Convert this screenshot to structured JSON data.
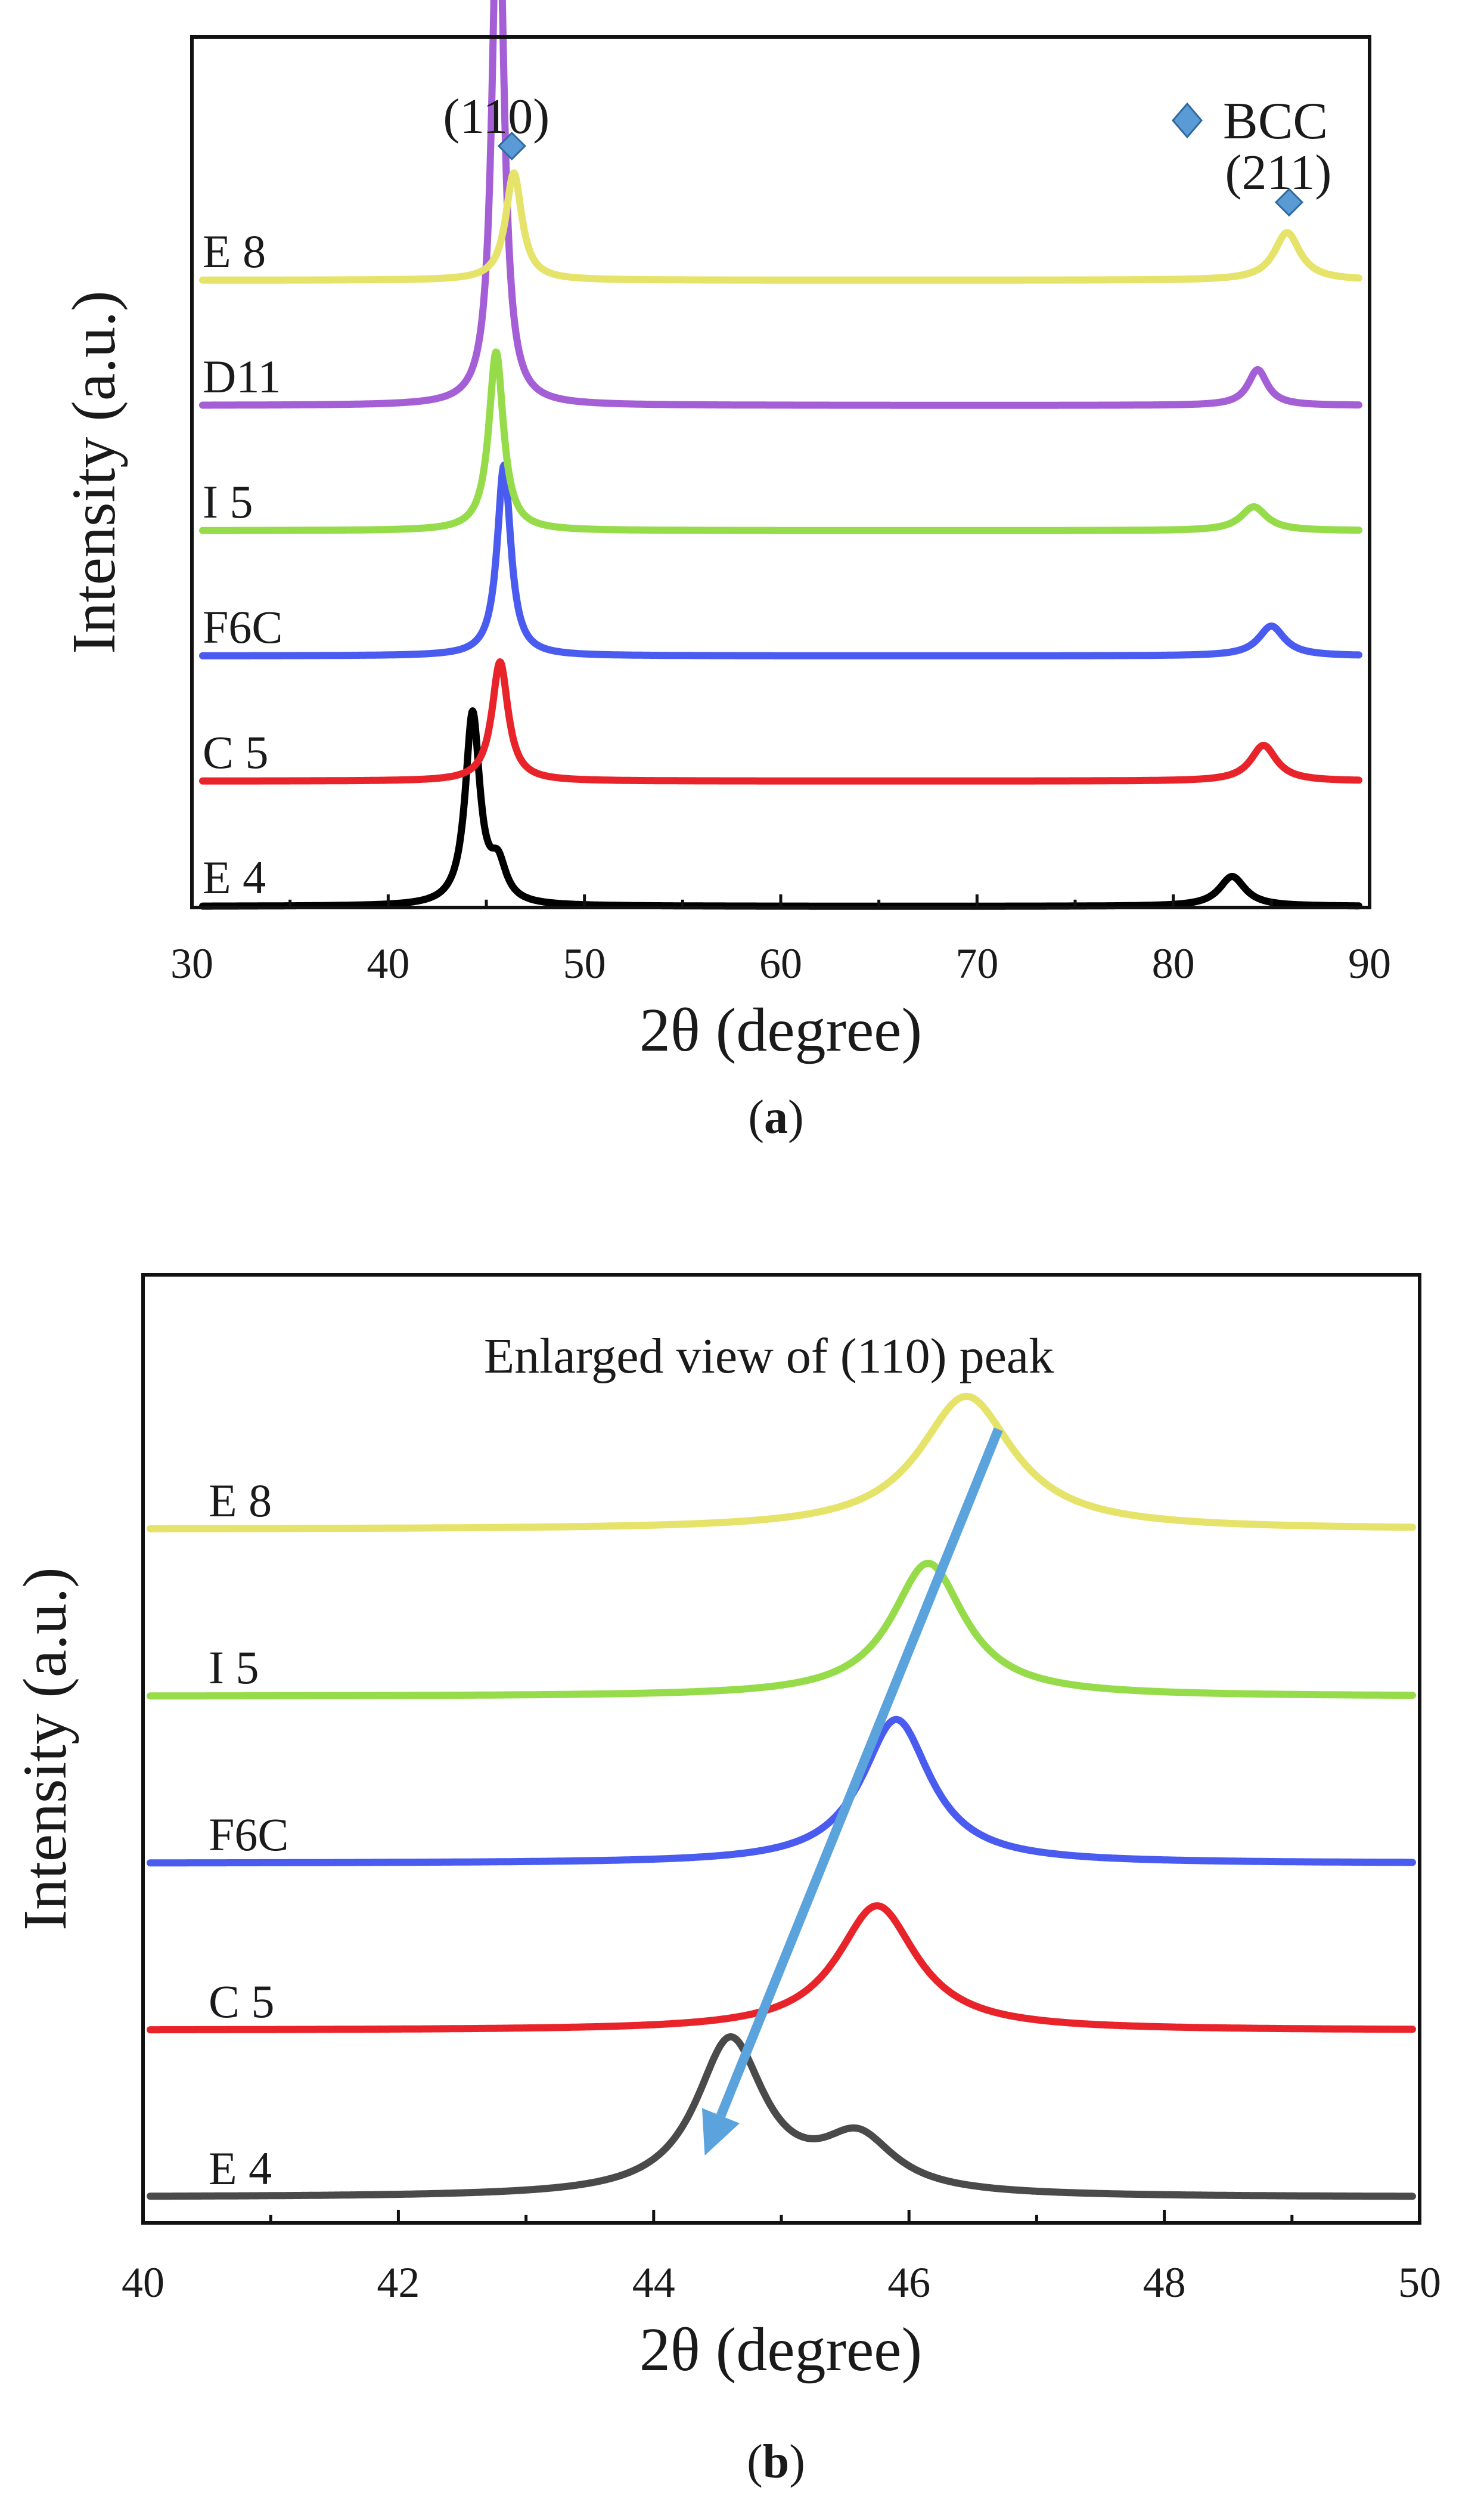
{
  "figure": {
    "panel_a_label": "a",
    "panel_b_label": "b"
  },
  "chart_data": [
    {
      "type": "line",
      "panel": "a",
      "xlabel": "2θ (degree)",
      "ylabel": "Intensity (a.u.)",
      "xlim": [
        30,
        90
      ],
      "xticks": [
        30,
        40,
        50,
        60,
        70,
        80,
        90
      ],
      "legend": {
        "marker": "diamond",
        "label": "BCC",
        "color": "#5b9bd5",
        "placement": "top-right"
      },
      "peak_labels": [
        {
          "text": "(110)",
          "x": 46.3
        },
        {
          "text": "(211)",
          "x": 85.9
        }
      ],
      "series": [
        {
          "name": "E 8",
          "color": "#e6e36a",
          "baseline": 5,
          "peaks": [
            {
              "x": 46.4,
              "height": 0.9,
              "width": 0.5
            },
            {
              "x": 85.8,
              "height": 0.4,
              "width": 0.8
            }
          ]
        },
        {
          "name": "D11",
          "color": "#a55fd6",
          "baseline": 4,
          "peaks": [
            {
              "x": 45.6,
              "height": 4.7,
              "width": 0.35
            },
            {
              "x": 84.3,
              "height": 0.3,
              "width": 0.6
            }
          ]
        },
        {
          "name": "I 5",
          "color": "#96dc4a",
          "baseline": 3,
          "peaks": [
            {
              "x": 45.5,
              "height": 1.5,
              "width": 0.45
            },
            {
              "x": 84.1,
              "height": 0.2,
              "width": 0.8
            }
          ]
        },
        {
          "name": "F6C",
          "color": "#4a5cf0",
          "baseline": 2,
          "peaks": [
            {
              "x": 45.9,
              "height": 1.6,
              "width": 0.42
            },
            {
              "x": 85.0,
              "height": 0.25,
              "width": 0.8
            }
          ]
        },
        {
          "name": "C 5",
          "color": "#e8242a",
          "baseline": 1,
          "peaks": [
            {
              "x": 45.7,
              "height": 1.0,
              "width": 0.5
            },
            {
              "x": 84.6,
              "height": 0.3,
              "width": 0.8
            }
          ]
        },
        {
          "name": "E 4",
          "color": "#000000",
          "baseline": 0,
          "peaks": [
            {
              "x": 44.3,
              "height": 1.6,
              "width": 0.45
            },
            {
              "x": 45.6,
              "height": 0.3,
              "width": 0.5
            },
            {
              "x": 83.0,
              "height": 0.25,
              "width": 0.8
            }
          ]
        }
      ]
    },
    {
      "type": "line",
      "panel": "b",
      "title": "Enlarged view of (110) peak",
      "xlabel": "2θ (degree)",
      "ylabel": "Intensity (a.u.)",
      "xlim": [
        40,
        50
      ],
      "xticks": [
        40,
        42,
        44,
        46,
        48,
        50
      ],
      "arrow": {
        "from": [
          46.7,
          4.6
        ],
        "to": [
          44.4,
          0.25
        ],
        "color": "#5ba3dd"
      },
      "series": [
        {
          "name": "E 8",
          "color": "#e6e36a",
          "baseline": 4,
          "peaks": [
            {
              "x": 46.45,
              "height": 0.62,
              "width": 0.45
            }
          ]
        },
        {
          "name": "I 5",
          "color": "#96dc4a",
          "baseline": 3,
          "peaks": [
            {
              "x": 46.15,
              "height": 0.62,
              "width": 0.35
            }
          ]
        },
        {
          "name": "F6C",
          "color": "#4a5cf0",
          "baseline": 2,
          "peaks": [
            {
              "x": 45.9,
              "height": 0.67,
              "width": 0.33
            }
          ]
        },
        {
          "name": "C 5",
          "color": "#e8242a",
          "baseline": 1,
          "peaks": [
            {
              "x": 45.75,
              "height": 0.58,
              "width": 0.38
            }
          ]
        },
        {
          "name": "E 4",
          "color": "#4a4a4a",
          "baseline": 0,
          "peaks": [
            {
              "x": 44.6,
              "height": 0.72,
              "width": 0.33
            },
            {
              "x": 45.6,
              "height": 0.25,
              "width": 0.35
            }
          ]
        }
      ]
    }
  ]
}
